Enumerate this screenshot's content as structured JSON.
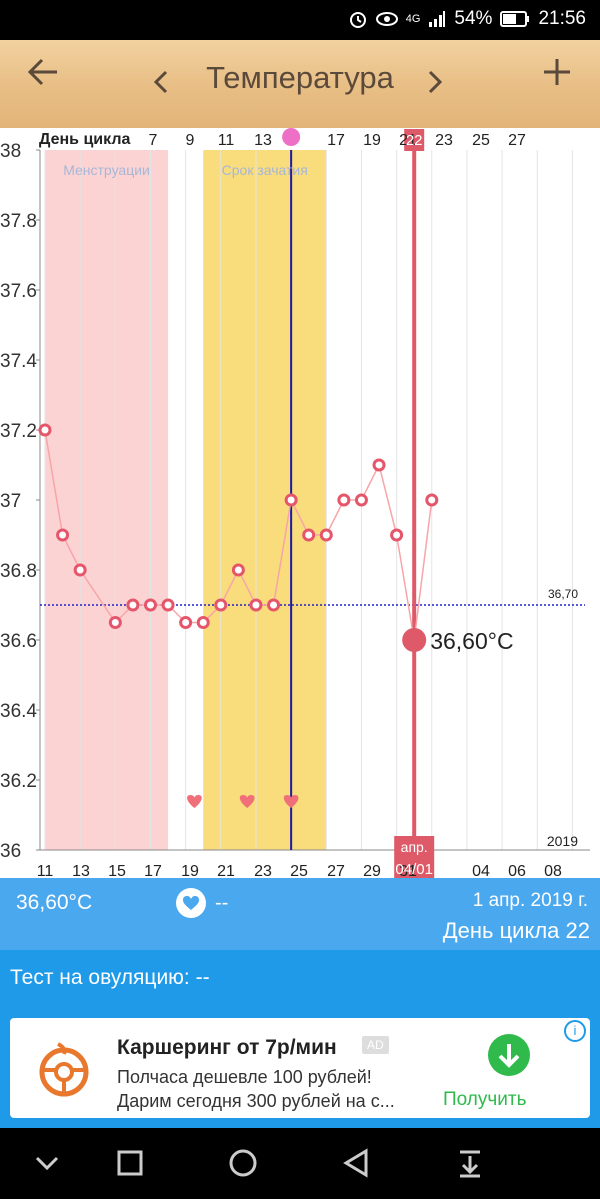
{
  "status_bar": {
    "network": "4G",
    "battery": "54%",
    "time": "21:56"
  },
  "app_bar": {
    "title": "Температура",
    "back_icon": "arrow-left-icon",
    "prev_icon": "chevron-left-icon",
    "next_icon": "chevron-right-icon",
    "add_icon": "plus-icon"
  },
  "cycle_header_label": "День цикла",
  "chart_data": {
    "type": "line",
    "y_range": [
      36,
      38
    ],
    "y_ticks": [
      "38",
      "37.8",
      "37.6",
      "37.4",
      "37.2",
      "37",
      "36.8",
      "36.6",
      "36.4",
      "36.2",
      "36"
    ],
    "cycle_days_labels": [
      "7",
      "9",
      "11",
      "13",
      "17",
      "19",
      "21",
      "23",
      "25",
      "27"
    ],
    "cycle_day_selected": "22",
    "date_labels": [
      "11",
      "13",
      "15",
      "17",
      "19",
      "21",
      "23",
      "25",
      "27",
      "29",
      "31",
      "04",
      "06",
      "08"
    ],
    "selected_date_label": {
      "month": "апр.",
      "date": "04/01"
    },
    "year_label": "2019",
    "day_range": [
      11,
      42
    ],
    "bands": [
      {
        "label": "Менструации",
        "from": 11,
        "to": 18,
        "color": "#fcd3d3",
        "label_color": "#a7b7d8"
      },
      {
        "label": "Срок зачатия",
        "from": 20,
        "to": 27,
        "color": "#f9dc7c",
        "label_color": "#a7b7d8"
      }
    ],
    "ovulation_day": 25,
    "coverline": {
      "value": 36.7,
      "label": "36,70"
    },
    "hearts": [
      19.5,
      22.5,
      25
    ],
    "selected": {
      "day": 32,
      "value": 36.6,
      "label": "36,60°C"
    },
    "series": [
      {
        "x": [
          11,
          12,
          13,
          15,
          16,
          17,
          18,
          19,
          20,
          21,
          22,
          23,
          24,
          25,
          26,
          27,
          28,
          29,
          30,
          31,
          32,
          33
        ],
        "values": [
          37.2,
          36.9,
          36.8,
          36.65,
          36.7,
          36.7,
          36.7,
          36.65,
          36.65,
          36.7,
          36.8,
          36.7,
          36.7,
          37.0,
          36.9,
          36.9,
          37.0,
          37.0,
          37.1,
          36.9,
          36.6,
          37.0
        ]
      }
    ],
    "colors": {
      "line": "#f7a5a8",
      "marker": "#e5566a",
      "selected": "#de5a68",
      "ovulation": "#1c1aa6",
      "coverline": "#2222cc"
    }
  },
  "info": {
    "temperature": "36,60°C",
    "intercourse": "--",
    "date": "1 апр. 2019 г.",
    "cycle_day": "День цикла 22"
  },
  "ovulation_test": "Тест на овуляцию: --",
  "ad": {
    "title": "Каршеринг от 7р/мин",
    "badge": "AD",
    "line1": "Полчаса дешевле 100 рублей!",
    "line2": "Дарим сегодня 300 рублей на с...",
    "button": "Получить"
  },
  "nav": [
    "chevron-down-icon",
    "square-icon",
    "circle-icon",
    "triangle-back-icon",
    "download-icon"
  ]
}
